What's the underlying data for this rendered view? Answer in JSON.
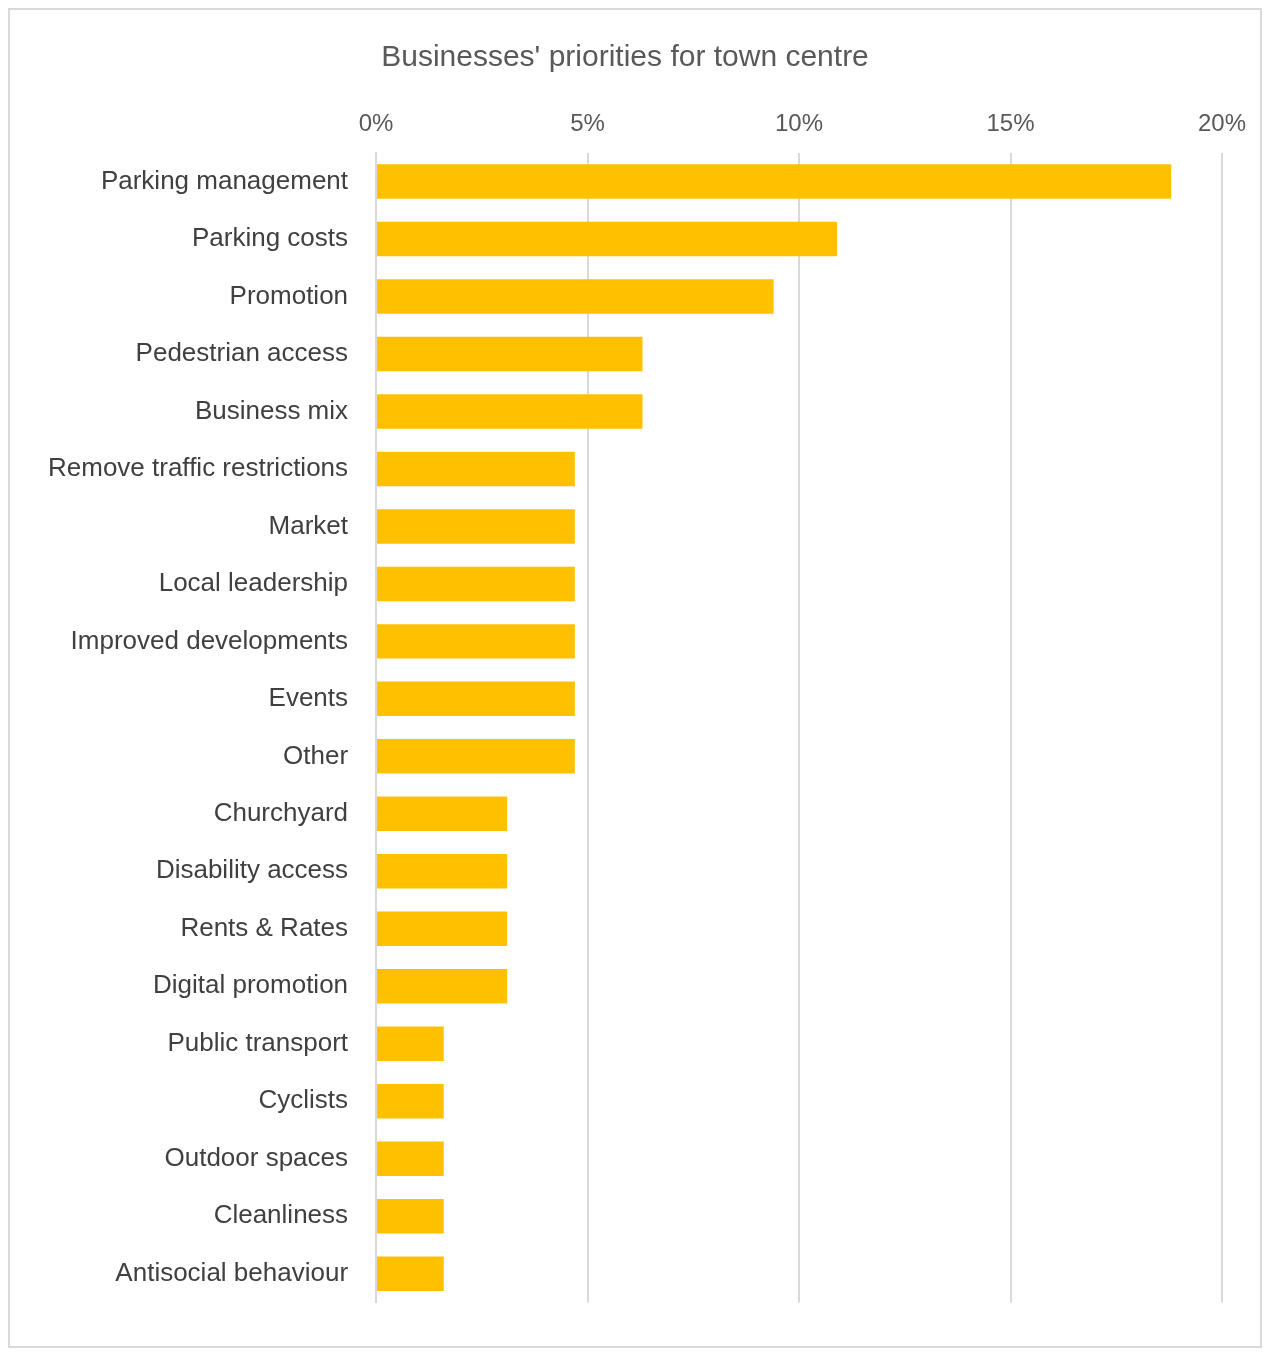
{
  "chart_data": {
    "type": "bar",
    "orientation": "horizontal",
    "title": "Businesses' priorities for town centre",
    "categories": [
      "Parking management",
      "Parking costs",
      "Promotion",
      "Pedestrian access",
      "Business mix",
      "Remove traffic restrictions",
      "Market",
      "Local leadership",
      "Improved developments",
      "Events",
      "Other",
      "Churchyard",
      "Disability access",
      "Rents & Rates",
      "Digital promotion",
      "Public transport",
      "Cyclists",
      "Outdoor spaces",
      "Cleanliness",
      "Antisocial behaviour"
    ],
    "values": [
      18.8,
      10.9,
      9.4,
      6.3,
      6.3,
      4.7,
      4.7,
      4.7,
      4.7,
      4.7,
      4.7,
      3.1,
      3.1,
      3.1,
      3.1,
      1.6,
      1.6,
      1.6,
      1.6,
      1.6
    ],
    "color": "#ffc000",
    "xlim": [
      0,
      20
    ],
    "xticks": [
      {
        "value": 0,
        "label": "0%"
      },
      {
        "value": 5,
        "label": "5%"
      },
      {
        "value": 10,
        "label": "10%"
      },
      {
        "value": 15,
        "label": "15%"
      },
      {
        "value": 20,
        "label": "20%"
      }
    ],
    "grid": "x",
    "legend": false
  }
}
